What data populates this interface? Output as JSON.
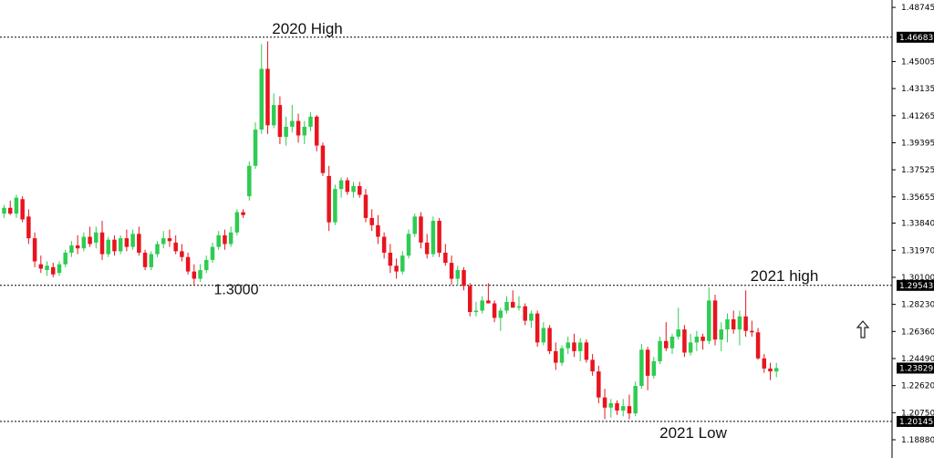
{
  "chart_data": {
    "type": "candlestick",
    "title": "",
    "y_axis": {
      "position": "right",
      "ylim": [
        1.1888,
        1.4875
      ],
      "ticks": [
        "1.48745",
        "1.45005",
        "1.43135",
        "1.41265",
        "1.39395",
        "1.37525",
        "1.35655",
        "1.33840",
        "1.31970",
        "1.30100",
        "1.28230",
        "1.26360",
        "1.24490",
        "1.22620",
        "1.20750",
        "1.18880"
      ]
    },
    "price_tags": [
      {
        "label": "1.46683",
        "value": 1.46683,
        "line": true
      },
      {
        "label": "1.29543",
        "value": 1.29543,
        "line": true
      },
      {
        "label": "1.23829",
        "value": 1.23829,
        "line": false
      },
      {
        "label": "1.20145",
        "value": 1.20145,
        "line": true
      }
    ],
    "annotations": [
      {
        "text": "2020 High",
        "value": 1.46683
      },
      {
        "text": "1.3000",
        "value": 1.3
      },
      {
        "text": "2021 high",
        "value": 1.29543
      },
      {
        "text": "2021 Low",
        "value": 1.20145
      }
    ],
    "colors": {
      "up": "#2ecc52",
      "down": "#e8141e",
      "line": "#000000",
      "tag": "#000000"
    },
    "candles": [
      [
        1.345,
        1.351,
        1.342,
        1.349
      ],
      [
        1.349,
        1.354,
        1.344,
        1.345
      ],
      [
        1.345,
        1.358,
        1.342,
        1.356
      ],
      [
        1.355,
        1.357,
        1.339,
        1.341
      ],
      [
        1.343,
        1.348,
        1.324,
        1.328
      ],
      [
        1.328,
        1.332,
        1.308,
        1.312
      ],
      [
        1.31,
        1.316,
        1.304,
        1.307
      ],
      [
        1.306,
        1.312,
        1.302,
        1.309
      ],
      [
        1.308,
        1.311,
        1.301,
        1.303
      ],
      [
        1.304,
        1.312,
        1.302,
        1.31
      ],
      [
        1.31,
        1.32,
        1.308,
        1.318
      ],
      [
        1.318,
        1.326,
        1.315,
        1.323
      ],
      [
        1.323,
        1.33,
        1.317,
        1.321
      ],
      [
        1.321,
        1.332,
        1.319,
        1.329
      ],
      [
        1.329,
        1.336,
        1.322,
        1.324
      ],
      [
        1.325,
        1.336,
        1.321,
        1.332
      ],
      [
        1.332,
        1.34,
        1.313,
        1.317
      ],
      [
        1.317,
        1.329,
        1.315,
        1.327
      ],
      [
        1.327,
        1.33,
        1.316,
        1.319
      ],
      [
        1.319,
        1.33,
        1.317,
        1.328
      ],
      [
        1.328,
        1.334,
        1.319,
        1.322
      ],
      [
        1.322,
        1.334,
        1.32,
        1.331
      ],
      [
        1.331,
        1.336,
        1.316,
        1.318
      ],
      [
        1.318,
        1.32,
        1.306,
        1.308
      ],
      [
        1.308,
        1.319,
        1.306,
        1.317
      ],
      [
        1.317,
        1.326,
        1.315,
        1.324
      ],
      [
        1.324,
        1.333,
        1.321,
        1.328
      ],
      [
        1.328,
        1.334,
        1.322,
        1.326
      ],
      [
        1.325,
        1.33,
        1.317,
        1.319
      ],
      [
        1.319,
        1.324,
        1.312,
        1.315
      ],
      [
        1.315,
        1.318,
        1.303,
        1.305
      ],
      [
        1.305,
        1.31,
        1.296,
        1.3
      ],
      [
        1.3,
        1.31,
        1.298,
        1.306
      ],
      [
        1.306,
        1.316,
        1.304,
        1.313
      ],
      [
        1.313,
        1.325,
        1.311,
        1.322
      ],
      [
        1.322,
        1.333,
        1.32,
        1.33
      ],
      [
        1.33,
        1.334,
        1.32,
        1.324
      ],
      [
        1.324,
        1.336,
        1.322,
        1.332
      ],
      [
        1.332,
        1.348,
        1.33,
        1.346
      ],
      [
        1.346,
        1.348,
        1.342,
        1.344
      ],
      [
        1.357,
        1.381,
        1.354,
        1.378
      ],
      [
        1.378,
        1.408,
        1.376,
        1.403
      ],
      [
        1.403,
        1.462,
        1.4,
        1.445
      ],
      [
        1.445,
        1.464,
        1.4,
        1.406
      ],
      [
        1.406,
        1.428,
        1.404,
        1.42
      ],
      [
        1.42,
        1.426,
        1.393,
        1.398
      ],
      [
        1.398,
        1.412,
        1.392,
        1.405
      ],
      [
        1.405,
        1.42,
        1.401,
        1.409
      ],
      [
        1.409,
        1.414,
        1.394,
        1.399
      ],
      [
        1.399,
        1.409,
        1.393,
        1.405
      ],
      [
        1.405,
        1.415,
        1.402,
        1.412
      ],
      [
        1.412,
        1.413,
        1.388,
        1.392
      ],
      [
        1.392,
        1.394,
        1.371,
        1.373
      ],
      [
        1.371,
        1.378,
        1.333,
        1.339
      ],
      [
        1.339,
        1.365,
        1.337,
        1.362
      ],
      [
        1.362,
        1.37,
        1.356,
        1.368
      ],
      [
        1.368,
        1.37,
        1.358,
        1.36
      ],
      [
        1.36,
        1.367,
        1.356,
        1.364
      ],
      [
        1.364,
        1.367,
        1.356,
        1.358
      ],
      [
        1.358,
        1.362,
        1.339,
        1.342
      ],
      [
        1.342,
        1.348,
        1.333,
        1.337
      ],
      [
        1.337,
        1.344,
        1.324,
        1.329
      ],
      [
        1.329,
        1.332,
        1.314,
        1.318
      ],
      [
        1.318,
        1.324,
        1.304,
        1.309
      ],
      [
        1.309,
        1.314,
        1.3,
        1.305
      ],
      [
        1.305,
        1.319,
        1.303,
        1.316
      ],
      [
        1.316,
        1.334,
        1.314,
        1.331
      ],
      [
        1.331,
        1.345,
        1.329,
        1.343
      ],
      [
        1.343,
        1.346,
        1.321,
        1.325
      ],
      [
        1.325,
        1.331,
        1.314,
        1.317
      ],
      [
        1.317,
        1.343,
        1.315,
        1.34
      ],
      [
        1.34,
        1.342,
        1.315,
        1.318
      ],
      [
        1.318,
        1.324,
        1.309,
        1.311
      ],
      [
        1.311,
        1.316,
        1.296,
        1.3
      ],
      [
        1.3,
        1.309,
        1.295,
        1.306
      ],
      [
        1.306,
        1.308,
        1.292,
        1.295
      ],
      [
        1.295,
        1.297,
        1.274,
        1.277
      ],
      [
        1.277,
        1.284,
        1.274,
        1.278
      ],
      [
        1.278,
        1.288,
        1.276,
        1.285
      ],
      [
        1.285,
        1.297,
        1.283,
        1.283
      ],
      [
        1.283,
        1.285,
        1.27,
        1.273
      ],
      [
        1.273,
        1.28,
        1.264,
        1.278
      ],
      [
        1.278,
        1.288,
        1.276,
        1.284
      ],
      [
        1.284,
        1.292,
        1.282,
        1.28
      ],
      [
        1.28,
        1.288,
        1.278,
        1.281
      ],
      [
        1.281,
        1.283,
        1.268,
        1.271
      ],
      [
        1.271,
        1.278,
        1.266,
        1.276
      ],
      [
        1.276,
        1.278,
        1.253,
        1.256
      ],
      [
        1.256,
        1.27,
        1.254,
        1.266
      ],
      [
        1.266,
        1.268,
        1.248,
        1.25
      ],
      [
        1.25,
        1.256,
        1.237,
        1.242
      ],
      [
        1.242,
        1.254,
        1.24,
        1.252
      ],
      [
        1.252,
        1.26,
        1.248,
        1.256
      ],
      [
        1.256,
        1.262,
        1.246,
        1.25
      ],
      [
        1.25,
        1.259,
        1.243,
        1.256
      ],
      [
        1.256,
        1.258,
        1.242,
        1.244
      ],
      [
        1.244,
        1.248,
        1.233,
        1.236
      ],
      [
        1.236,
        1.24,
        1.214,
        1.218
      ],
      [
        1.218,
        1.224,
        1.203,
        1.211
      ],
      [
        1.211,
        1.217,
        1.204,
        1.214
      ],
      [
        1.214,
        1.216,
        1.206,
        1.209
      ],
      [
        1.209,
        1.217,
        1.205,
        1.212
      ],
      [
        1.212,
        1.22,
        1.203,
        1.207
      ],
      [
        1.207,
        1.229,
        1.205,
        1.226
      ],
      [
        1.226,
        1.255,
        1.224,
        1.251
      ],
      [
        1.251,
        1.253,
        1.223,
        1.233
      ],
      [
        1.233,
        1.246,
        1.231,
        1.243
      ],
      [
        1.243,
        1.26,
        1.241,
        1.257
      ],
      [
        1.257,
        1.27,
        1.25,
        1.252
      ],
      [
        1.252,
        1.262,
        1.248,
        1.26
      ],
      [
        1.26,
        1.28,
        1.258,
        1.265
      ],
      [
        1.265,
        1.268,
        1.246,
        1.249
      ],
      [
        1.249,
        1.262,
        1.247,
        1.256
      ],
      [
        1.256,
        1.264,
        1.25,
        1.26
      ],
      [
        1.26,
        1.262,
        1.251,
        1.257
      ],
      [
        1.257,
        1.294,
        1.255,
        1.285
      ],
      [
        1.285,
        1.289,
        1.254,
        1.258
      ],
      [
        1.258,
        1.27,
        1.25,
        1.265
      ],
      [
        1.265,
        1.276,
        1.256,
        1.272
      ],
      [
        1.272,
        1.278,
        1.262,
        1.265
      ],
      [
        1.265,
        1.278,
        1.254,
        1.274
      ],
      [
        1.274,
        1.292,
        1.26,
        1.264
      ],
      [
        1.264,
        1.271,
        1.26,
        1.263
      ],
      [
        1.263,
        1.266,
        1.244,
        1.245
      ],
      [
        1.245,
        1.248,
        1.235,
        1.238
      ],
      [
        1.238,
        1.242,
        1.23,
        1.236
      ],
      [
        1.236,
        1.242,
        1.232,
        1.2383
      ]
    ]
  }
}
